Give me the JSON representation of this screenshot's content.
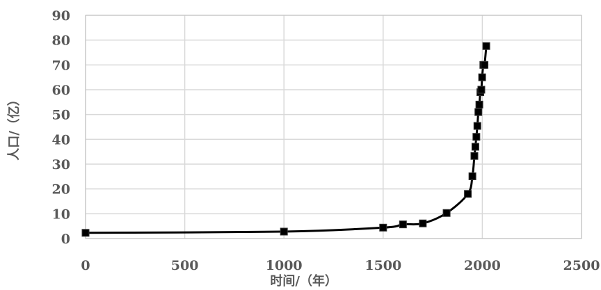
{
  "chart_data": {
    "type": "line",
    "xlabel": "时间/（年）",
    "ylabel": "人口/（亿）",
    "xlim": [
      0,
      2500
    ],
    "ylim": [
      0,
      90
    ],
    "x_ticks": [
      "0",
      "500",
      "1000",
      "1500",
      "2000",
      "2500"
    ],
    "y_ticks": [
      "0",
      "10",
      "20",
      "30",
      "40",
      "50",
      "60",
      "70",
      "80",
      "90"
    ],
    "grid": true,
    "marker": "square",
    "series": [
      {
        "x": [
          0,
          1000,
          1500,
          1600,
          1700,
          1820,
          1927,
          1950,
          1960,
          1965,
          1970,
          1975,
          1980,
          1985,
          1990,
          1995,
          1999,
          2005,
          2011,
          2020
        ],
        "y": [
          2.3,
          2.8,
          4.4,
          5.7,
          6.1,
          10.3,
          18.0,
          25.1,
          33.3,
          37.0,
          41.0,
          45.4,
          51.0,
          54.0,
          59.0,
          60.0,
          65.0,
          70.0,
          70.0,
          77.6
        ]
      }
    ],
    "colors": {
      "line": "#000000",
      "grid": "#d9d9d9",
      "marker": "#000000"
    }
  }
}
